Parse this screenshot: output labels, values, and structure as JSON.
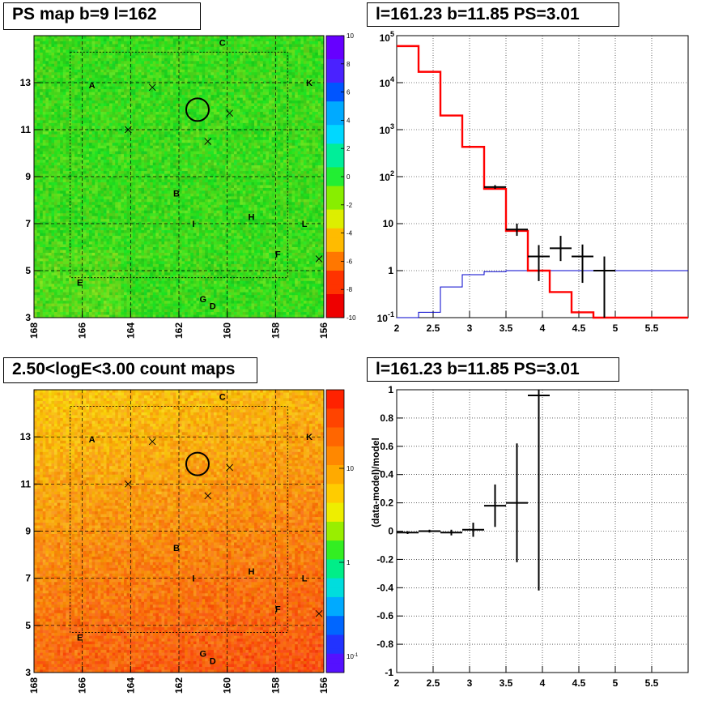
{
  "titles": {
    "tl": "PS map b=9 l=162",
    "tr": "l=161.23 b=11.85 PS=3.01",
    "bl": "2.50<logE<3.00 count maps",
    "br": "l=161.23 b=11.85 PS=3.01"
  },
  "colors": {
    "data": "#000000",
    "model": "#ff0000",
    "background_model": "#0000cc",
    "grid": "#000000"
  },
  "chart_data": [
    {
      "type": "heatmap",
      "name": "ps_map",
      "x_ticks": [
        "168",
        "166",
        "164",
        "162",
        "160",
        "158",
        "156"
      ],
      "x_tick_values": [
        168,
        166,
        164,
        162,
        160,
        158,
        156
      ],
      "y_ticks": [
        "3",
        "5",
        "7",
        "9",
        "11",
        "13"
      ],
      "y_tick_values": [
        3,
        5,
        7,
        9,
        11,
        13
      ],
      "xlim": [
        168,
        156
      ],
      "ylim": [
        3,
        15
      ],
      "colorbar": {
        "ticks": [
          "10",
          "8",
          "6",
          "4",
          "2",
          "0",
          "-2",
          "-4",
          "-6",
          "-8",
          "-10"
        ],
        "range": [
          -10,
          10
        ]
      },
      "sources": [
        {
          "label": "A",
          "l": 165.6,
          "b": 12.9
        },
        {
          "label": "B",
          "l": 162.1,
          "b": 8.3
        },
        {
          "label": "C",
          "l": 160.2,
          "b": 14.7
        },
        {
          "label": "D",
          "l": 160.6,
          "b": 3.5
        },
        {
          "label": "E",
          "l": 166.1,
          "b": 4.5
        },
        {
          "label": "F",
          "l": 157.9,
          "b": 5.7
        },
        {
          "label": "G",
          "l": 161.0,
          "b": 3.8
        },
        {
          "label": "H",
          "l": 159.0,
          "b": 7.3
        },
        {
          "label": "I",
          "l": 161.4,
          "b": 7.0
        },
        {
          "label": "K",
          "l": 156.6,
          "b": 13.0
        },
        {
          "label": "L",
          "l": 156.8,
          "b": 7.0
        }
      ],
      "crosses": [
        [
          163.1,
          12.8
        ],
        [
          164.1,
          11.0
        ],
        [
          159.9,
          11.7
        ],
        [
          160.8,
          10.5
        ],
        [
          156.2,
          5.5
        ]
      ],
      "circle": {
        "l": 161.23,
        "b": 11.85
      }
    },
    {
      "type": "line",
      "name": "spectrum",
      "x_ticks": [
        "2",
        "2.5",
        "3",
        "3.5",
        "4",
        "4.5",
        "5",
        "5.5"
      ],
      "x_tick_values": [
        2,
        2.5,
        3,
        3.5,
        4,
        4.5,
        5,
        5.5
      ],
      "xlim": [
        2,
        6
      ],
      "yscale": "log",
      "y_ticks": [
        "10^-1",
        "1",
        "10",
        "10^2",
        "10^3",
        "10^4",
        "10^5"
      ],
      "y_tick_values": [
        0.1,
        1,
        10,
        100,
        1000,
        10000,
        100000
      ],
      "ylim": [
        0.1,
        100000
      ],
      "grid": true,
      "series": [
        {
          "role": "model",
          "edges": [
            2,
            2.3,
            2.6,
            2.9,
            3.2,
            3.5,
            3.8,
            4.1,
            4.4,
            4.7,
            5.0,
            6.0
          ],
          "values": [
            60000,
            17000,
            2000,
            430,
            55,
            7,
            1,
            0.35,
            0.13,
            0.1,
            0.1
          ]
        },
        {
          "role": "background",
          "edges": [
            2,
            2.3,
            2.6,
            2.9,
            3.2,
            3.5,
            3.8,
            6.0
          ],
          "values": [
            0.1,
            0.13,
            0.45,
            0.82,
            0.95,
            1.0,
            1.0
          ]
        },
        {
          "role": "data",
          "points": [
            {
              "x": 3.35,
              "y": 60,
              "xerr": 0.15,
              "ylo": 55,
              "yhi": 66
            },
            {
              "x": 3.65,
              "y": 7.5,
              "xerr": 0.15,
              "ylo": 5.5,
              "yhi": 10
            },
            {
              "x": 3.95,
              "y": 2,
              "xerr": 0.15,
              "ylo": 0.6,
              "yhi": 3.5
            },
            {
              "x": 4.25,
              "y": 3,
              "xerr": 0.15,
              "ylo": 1.6,
              "yhi": 5.5
            },
            {
              "x": 4.55,
              "y": 2,
              "xerr": 0.15,
              "ylo": 0.55,
              "yhi": 3.6
            },
            {
              "x": 4.85,
              "y": 1,
              "xerr": 0.15,
              "ylo": 0.1,
              "yhi": 2
            }
          ]
        }
      ]
    },
    {
      "type": "heatmap",
      "name": "count_map",
      "x_ticks": [
        "168",
        "166",
        "164",
        "162",
        "160",
        "158",
        "156"
      ],
      "x_tick_values": [
        168,
        166,
        164,
        162,
        160,
        158,
        156
      ],
      "y_ticks": [
        "3",
        "5",
        "7",
        "9",
        "11",
        "13"
      ],
      "y_tick_values": [
        3,
        5,
        7,
        9,
        11,
        13
      ],
      "xlim": [
        168,
        156
      ],
      "ylim": [
        3,
        15
      ],
      "colorbar": {
        "scale": "log",
        "ticks": [
          "10",
          "1",
          "10^-1"
        ]
      }
    },
    {
      "type": "scatter",
      "name": "residuals",
      "x_ticks": [
        "2",
        "2.5",
        "3",
        "3.5",
        "4",
        "4.5",
        "5",
        "5.5"
      ],
      "x_tick_values": [
        2,
        2.5,
        3,
        3.5,
        4,
        4.5,
        5,
        5.5
      ],
      "xlim": [
        2,
        6
      ],
      "y_ticks": [
        "1",
        "0.8",
        "0.6",
        "0.4",
        "0.2",
        "0",
        "-0.2",
        "-0.4",
        "-0.6",
        "-0.8",
        "-1"
      ],
      "y_tick_values": [
        1,
        0.8,
        0.6,
        0.4,
        0.2,
        0,
        -0.2,
        -0.4,
        -0.6,
        -0.8,
        -1
      ],
      "ylim": [
        -1,
        1
      ],
      "ylabel": "(data-model)/model",
      "grid": true,
      "points": [
        {
          "x": 2.15,
          "y": -0.01,
          "xerr": 0.15,
          "yerr": 0.01
        },
        {
          "x": 2.45,
          "y": 0.0,
          "xerr": 0.15,
          "yerr": 0.01
        },
        {
          "x": 2.75,
          "y": -0.01,
          "xerr": 0.15,
          "yerr": 0.02
        },
        {
          "x": 3.05,
          "y": 0.01,
          "xerr": 0.15,
          "yerr": 0.05
        },
        {
          "x": 3.35,
          "y": 0.18,
          "xerr": 0.15,
          "yerr": 0.15
        },
        {
          "x": 3.65,
          "y": 0.2,
          "xerr": 0.15,
          "yerr": 0.42
        },
        {
          "x": 3.95,
          "y": 0.96,
          "xerr": 0.15,
          "yerr": 1.38
        }
      ]
    }
  ]
}
